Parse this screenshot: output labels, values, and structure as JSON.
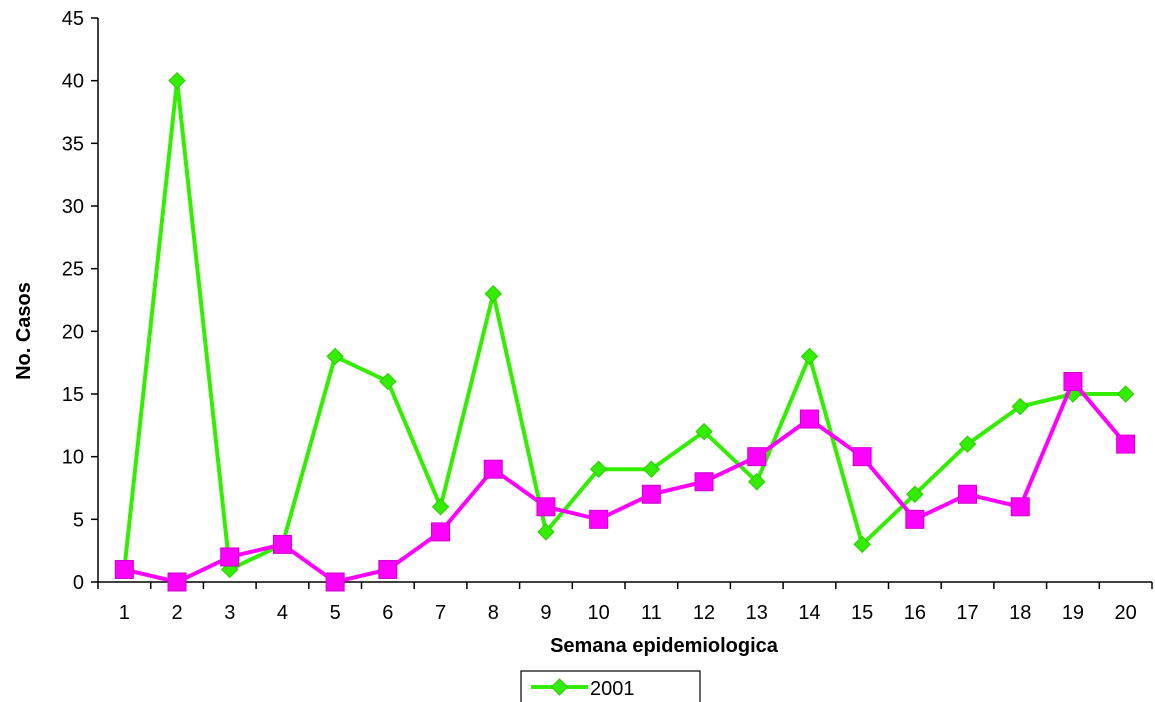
{
  "chart_data": {
    "type": "line",
    "title": "",
    "xlabel": "Semana epidemiologica",
    "ylabel": "No. Casos",
    "categories": [
      "1",
      "2",
      "3",
      "4",
      "5",
      "6",
      "7",
      "8",
      "9",
      "10",
      "11",
      "12",
      "13",
      "14",
      "15",
      "16",
      "17",
      "18",
      "19",
      "20"
    ],
    "ylim": [
      0,
      45
    ],
    "yticks": [
      0,
      5,
      10,
      15,
      20,
      25,
      30,
      35,
      40,
      45
    ],
    "grid": false,
    "legend_position": "bottom",
    "series": [
      {
        "name": "2001",
        "color": "#33ee00",
        "marker": "diamond",
        "values": [
          1,
          40,
          1,
          3,
          18,
          16,
          6,
          23,
          4,
          9,
          9,
          12,
          8,
          18,
          3,
          7,
          11,
          14,
          15,
          15
        ]
      },
      {
        "color": "#ff00ff",
        "marker": "square",
        "values": [
          1,
          0,
          2,
          3,
          0,
          1,
          4,
          9,
          6,
          5,
          7,
          8,
          10,
          13,
          10,
          5,
          7,
          6,
          16,
          11
        ]
      }
    ]
  }
}
